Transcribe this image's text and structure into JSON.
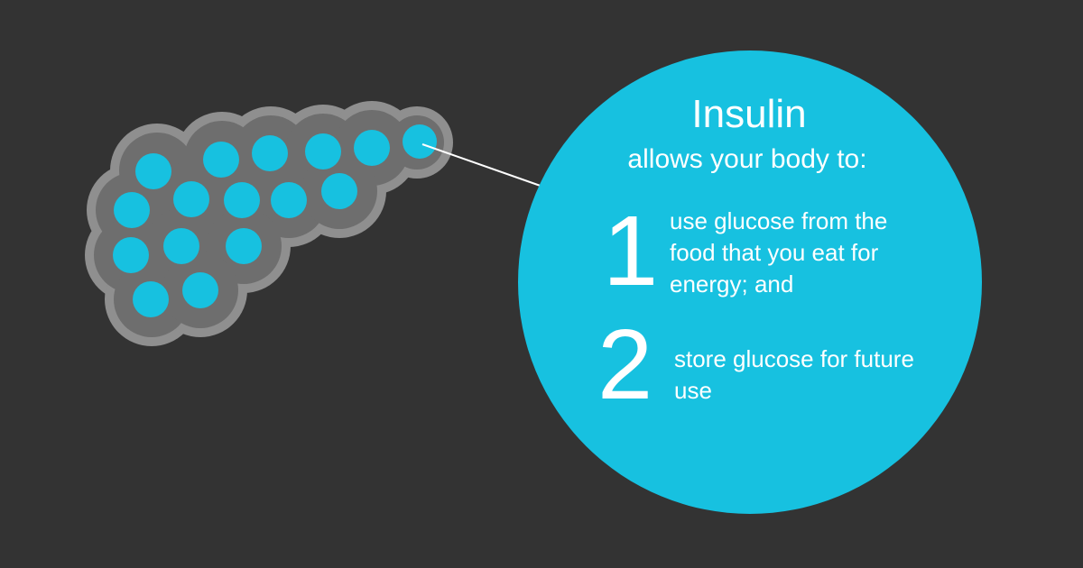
{
  "colors": {
    "background": "#333333",
    "accent": "#17c1e0",
    "organ_border": "#8f8f8f",
    "organ_fill": "#6e6e6e",
    "text": "#ffffff"
  },
  "callout": {
    "title": "Insulin",
    "subtitle": "allows your body to:",
    "items": [
      {
        "number": "1",
        "text": "use glucose from the food that you eat for energy; and"
      },
      {
        "number": "2",
        "text": "store glucose for future use"
      }
    ]
  }
}
